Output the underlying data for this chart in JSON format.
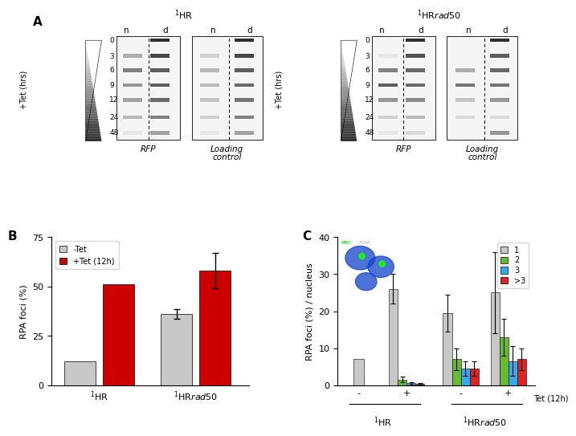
{
  "panel_B": {
    "notet_values": [
      12,
      36
    ],
    "tet_values": [
      51,
      58
    ],
    "notet_errors": [
      0,
      2.5
    ],
    "tet_errors": [
      0,
      9
    ],
    "notet_color": "#c8c8c8",
    "tet_color": "#cc0000",
    "ylim": [
      0,
      75
    ],
    "yticks": [
      0,
      25,
      50,
      75
    ],
    "ylabel": "RPA foci (%)",
    "legend_labels": [
      "-Tet",
      "+Tet (12h)"
    ]
  },
  "panel_C": {
    "cat1_values": [
      7,
      26,
      19.5,
      25
    ],
    "cat2_values": [
      0,
      1.5,
      7,
      13
    ],
    "cat3_values": [
      0,
      0.5,
      4.5,
      6.5
    ],
    "cat4_values": [
      0,
      0.3,
      4.5,
      7
    ],
    "cat1_errors": [
      0,
      4,
      5,
      11
    ],
    "cat2_errors": [
      0,
      0.8,
      3,
      5
    ],
    "cat3_errors": [
      0,
      0.3,
      2,
      4
    ],
    "cat4_errors": [
      0,
      0.2,
      2,
      3
    ],
    "cat1_color": "#c8c8c8",
    "cat2_color": "#66bb33",
    "cat3_color": "#33aaee",
    "cat4_color": "#dd2222",
    "ylim": [
      0,
      40
    ],
    "yticks": [
      0,
      10,
      20,
      30,
      40
    ],
    "ylabel": "RPA foci (%) / nucleus",
    "legend_labels": [
      "1",
      "2",
      "3",
      ">3"
    ],
    "tet_label": "Tet (12h)"
  },
  "gel_left": {
    "title": "$^1$HR",
    "rfp_n_intensities": [
      0.0,
      0.35,
      0.55,
      0.45,
      0.4,
      0.3,
      0.1
    ],
    "rfp_d_intensities": [
      0.9,
      0.8,
      0.7,
      0.7,
      0.65,
      0.55,
      0.4
    ],
    "load_n_intensities": [
      0.0,
      0.2,
      0.3,
      0.3,
      0.25,
      0.2,
      0.1
    ],
    "load_d_intensities": [
      0.9,
      0.8,
      0.7,
      0.65,
      0.6,
      0.55,
      0.4
    ]
  },
  "gel_right": {
    "title": "$^1$HR$\\mathit{rad50}$",
    "rfp_n_intensities": [
      0.0,
      0.1,
      0.55,
      0.7,
      0.45,
      0.2,
      0.1
    ],
    "rfp_d_intensities": [
      0.9,
      0.75,
      0.65,
      0.65,
      0.5,
      0.3,
      0.15
    ],
    "load_n_intensities": [
      0.0,
      0.0,
      0.35,
      0.6,
      0.25,
      0.15,
      0.0
    ],
    "load_d_intensities": [
      0.9,
      0.7,
      0.65,
      0.6,
      0.45,
      0.15,
      0.45
    ]
  },
  "time_labels": [
    "0",
    "3",
    "6",
    "9",
    "12",
    "24",
    "48"
  ],
  "bg_color": "#ffffff",
  "panel_A_label": "A",
  "panel_B_label": "B",
  "panel_C_label": "C"
}
